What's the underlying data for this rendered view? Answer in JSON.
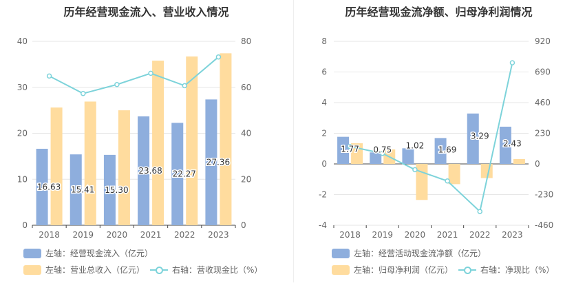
{
  "chart_data": [
    {
      "type": "bar",
      "title": "历年经营现金流入、营业收入情况",
      "categories": [
        "2018",
        "2019",
        "2020",
        "2021",
        "2022",
        "2023"
      ],
      "left_axis": {
        "min": 0,
        "max": 40,
        "ticks": [
          "0",
          "10",
          "20",
          "30",
          "40"
        ]
      },
      "right_axis": {
        "min": 0,
        "max": 80,
        "ticks": [
          "0",
          "20",
          "40",
          "60",
          "80"
        ]
      },
      "series": [
        {
          "name": "左轴：经营现金流入（亿元）",
          "kind": "bar",
          "axis": "left",
          "color": "#8eaedd",
          "values": [
            16.63,
            15.41,
            15.3,
            23.68,
            22.27,
            27.36
          ],
          "labels": [
            "16.63",
            "15.41",
            "15.30",
            "23.68",
            "22.27",
            "27.36"
          ]
        },
        {
          "name": "左轴：营业总收入（亿元）",
          "kind": "bar",
          "axis": "left",
          "color": "#ffdc9e",
          "values": [
            25.6,
            26.9,
            25.0,
            35.8,
            36.7,
            37.4
          ]
        },
        {
          "name": "右轴：营收现金比（%）",
          "kind": "line",
          "axis": "right",
          "color": "#7dd3da",
          "values": [
            64.9,
            57.3,
            61.2,
            66.1,
            60.7,
            73.2
          ]
        }
      ]
    },
    {
      "type": "bar",
      "title": "历年经营现金流净额、归母净利润情况",
      "categories": [
        "2018",
        "2019",
        "2020",
        "2021",
        "2022",
        "2023"
      ],
      "left_axis": {
        "min": -4,
        "max": 8,
        "ticks": [
          "-4",
          "-2",
          "0",
          "2",
          "4",
          "6",
          "8"
        ]
      },
      "right_axis": {
        "min": -460,
        "max": 920,
        "ticks": [
          "-460",
          "-230",
          "0",
          "230",
          "460",
          "690",
          "920"
        ]
      },
      "series": [
        {
          "name": "左轴：经营活动现金流净额（亿元）",
          "kind": "bar",
          "axis": "left",
          "color": "#8eaedd",
          "values": [
            1.77,
            0.75,
            1.02,
            1.69,
            3.29,
            2.43
          ],
          "labels": [
            "1.77",
            "0.75",
            "1.02",
            "1.69",
            "3.29",
            "2.43"
          ]
        },
        {
          "name": "左轴：归母净利润（亿元）",
          "kind": "bar",
          "axis": "left",
          "color": "#ffdc9e",
          "values": [
            1.35,
            0.95,
            -2.35,
            -1.32,
            -0.92,
            0.32
          ]
        },
        {
          "name": "右轴：净现比（%）",
          "kind": "line",
          "axis": "right",
          "color": "#7dd3da",
          "values": [
            131,
            79,
            -43,
            -128,
            -357,
            759
          ]
        }
      ]
    }
  ]
}
